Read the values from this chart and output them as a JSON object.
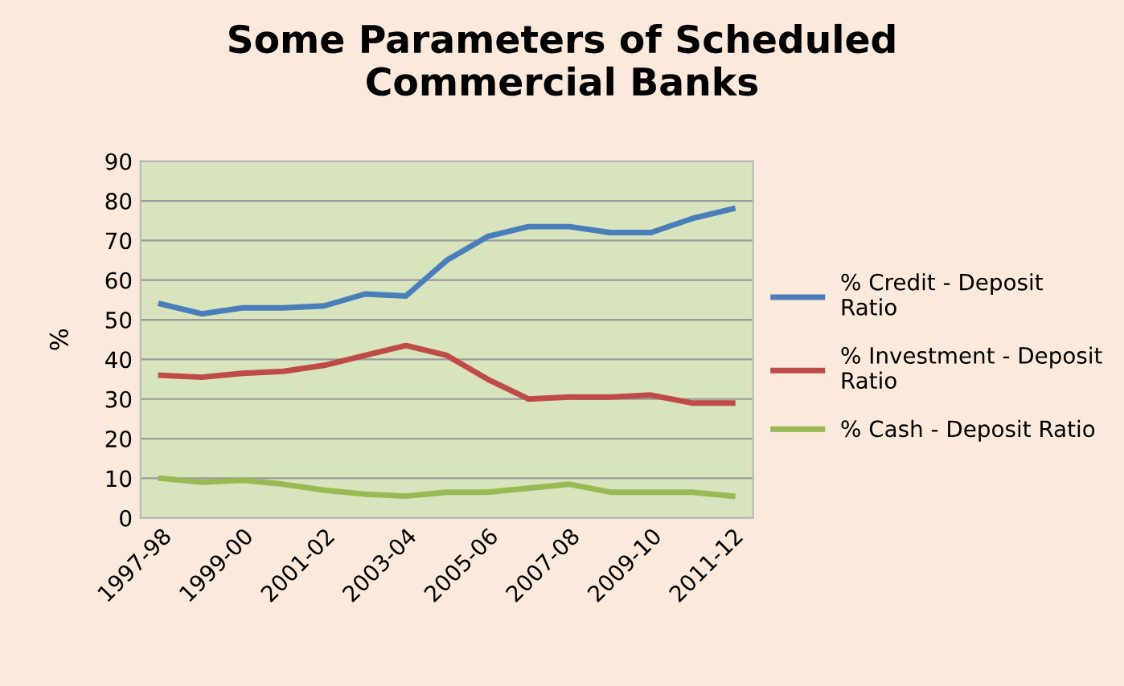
{
  "chart_data": {
    "type": "line",
    "title": "Some Parameters of Scheduled\nCommercial Banks",
    "ylabel": "%",
    "categories": [
      "1997-98",
      null,
      "1999-00",
      null,
      "2001-02",
      null,
      "2003-04",
      null,
      "2005-06",
      null,
      "2007-08",
      null,
      "2009-10",
      null,
      "2011-12"
    ],
    "series": [
      {
        "name": "% Credit - Deposit\nRatio",
        "color": "#4a7ebb",
        "values": [
          54,
          51.5,
          53,
          53,
          53.5,
          56.5,
          56,
          65,
          71,
          73.5,
          73.5,
          72,
          72,
          75.5,
          78
        ]
      },
      {
        "name": "% Investment - Deposit\nRatio",
        "color": "#be4b48",
        "values": [
          36,
          35.5,
          36.5,
          37,
          38.5,
          41,
          43.5,
          41,
          35,
          30,
          30.5,
          30.5,
          31,
          29,
          29
        ]
      },
      {
        "name": "% Cash - Deposit Ratio",
        "color": "#98b954",
        "values": [
          10,
          9,
          9.5,
          8.5,
          7,
          6,
          5.5,
          6.5,
          6.5,
          7.5,
          8.5,
          6.5,
          6.5,
          6.5,
          5.5
        ]
      }
    ],
    "ylim": [
      0,
      90
    ],
    "yticks": [
      0,
      10,
      20,
      30,
      40,
      50,
      60,
      70,
      80,
      90
    ],
    "grid": "y",
    "legend": "right",
    "marker": "none",
    "line_style": "solid"
  }
}
